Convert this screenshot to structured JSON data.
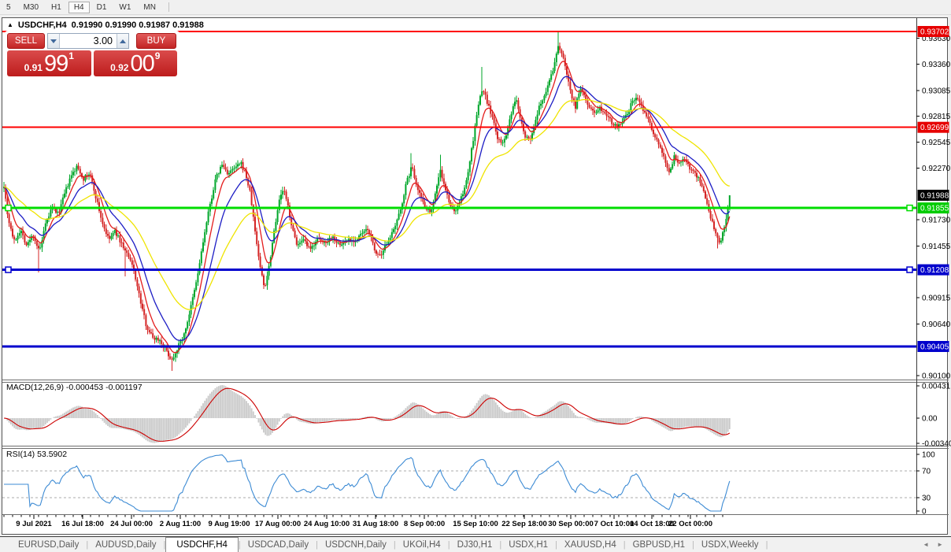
{
  "toolbar": {
    "items": [
      "5",
      "M30",
      "H1",
      "H4",
      "D1",
      "W1",
      "MN"
    ],
    "active": "H4"
  },
  "chart": {
    "symbol_period": "USDCHF,H4",
    "quotes": "0.91990 0.91990 0.91987 0.91988",
    "arrow_icon": "▲"
  },
  "trade_panel": {
    "sell_label": "SELL",
    "buy_label": "BUY",
    "volume": "3.00",
    "sell_price": {
      "small": "0.91",
      "big": "99",
      "sup": "1"
    },
    "buy_price": {
      "small": "0.92",
      "big": "00",
      "sup": "9"
    }
  },
  "indicators": {
    "macd_label": "MACD(12,26,9) -0.000453 -0.001197",
    "rsi_label": "RSI(14) 53.5902"
  },
  "price_axis": {
    "ticks": [
      0.9363,
      0.9336,
      0.93085,
      0.92815,
      0.92545,
      0.9227,
      0.9173,
      0.91455,
      0.90915,
      0.9064,
      0.901
    ],
    "badges": [
      {
        "value": "0.93702",
        "price": 0.93702,
        "bg": "#e60000",
        "fg": "#ffffff"
      },
      {
        "value": "0.92699",
        "price": 0.92699,
        "bg": "#e60000",
        "fg": "#ffffff"
      },
      {
        "value": "0.91988",
        "price": 0.91988,
        "bg": "#000000",
        "fg": "#ffffff"
      },
      {
        "value": "0.91855",
        "price": 0.91855,
        "bg": "#00cc00",
        "fg": "#ffffff"
      },
      {
        "value": "0.91208",
        "price": 0.91208,
        "bg": "#0000cc",
        "fg": "#ffffff"
      },
      {
        "value": "0.90405",
        "price": 0.90405,
        "bg": "#0000cc",
        "fg": "#ffffff"
      }
    ]
  },
  "macd_axis": [
    {
      "label": "0.00431",
      "value": 0.00431
    },
    {
      "label": "0.00",
      "value": 0
    },
    {
      "label": "-0.003405",
      "value": -0.003405
    }
  ],
  "rsi_axis": [
    {
      "label": "100",
      "value": 100
    },
    {
      "label": "70",
      "value": 70
    },
    {
      "label": "30",
      "value": 30
    },
    {
      "label": "0",
      "value": 0
    }
  ],
  "date_axis": [
    {
      "text": "9 Jul 2021",
      "x": 43
    },
    {
      "text": "16 Jul 18:00",
      "x": 105
    },
    {
      "text": "24 Jul 00:00",
      "x": 167
    },
    {
      "text": "2 Aug 11:00",
      "x": 229
    },
    {
      "text": "9 Aug 19:00",
      "x": 291
    },
    {
      "text": "17 Aug 00:00",
      "x": 353
    },
    {
      "text": "24 Aug 10:00",
      "x": 415
    },
    {
      "text": "31 Aug 18:00",
      "x": 477
    },
    {
      "text": "8 Sep 00:00",
      "x": 539
    },
    {
      "text": "15 Sep 10:00",
      "x": 604
    },
    {
      "text": "22 Sep 18:00",
      "x": 666
    },
    {
      "text": "30 Sep 00:00",
      "x": 725
    },
    {
      "text": "7 Oct 10:00",
      "x": 780
    },
    {
      "text": "14 Oct 18:00",
      "x": 828
    },
    {
      "text": "22 Oct 00:00",
      "x": 877
    }
  ],
  "tabs": {
    "items": [
      "EURUSD,Daily",
      "AUDUSD,Daily",
      "USDCHF,H4",
      "USDCAD,Daily",
      "USDCNH,Daily",
      "UKOil,H4",
      "DJ30,H1",
      "USDX,H1",
      "XAUUSD,H4",
      "GBPUSD,H1",
      "USDX,Weekly"
    ],
    "active_index": 2,
    "scroll_left_icon": "◄",
    "scroll_right_icon": "►"
  },
  "chart_data": {
    "type": "candlestick",
    "symbol": "USDCHF",
    "timeframe": "H4",
    "ylim": [
      0.90067,
      0.93801
    ],
    "current_price": 0.91988,
    "colors": {
      "up": "#00a62a",
      "down": "#d42525",
      "ma_fast": "#e41c1c",
      "ma_mid": "#1c1cc4",
      "ma_slow": "#efe400",
      "macd_hist": "#c9c9c9",
      "macd_signal": "#cc0000",
      "rsi_line": "#3d8bd4"
    },
    "moving_averages": [
      {
        "name": "fast",
        "period": 8,
        "color": "#e41c1c"
      },
      {
        "name": "mid",
        "period": 18,
        "color": "#1c1cc4"
      },
      {
        "name": "slow",
        "period": 45,
        "color": "#efe400"
      }
    ],
    "macd_params": {
      "fast": 12,
      "slow": 26,
      "signal": 9,
      "value": -0.000453,
      "signal_value": -0.001197,
      "axis_max": 0.00431,
      "axis_min": -0.003405
    },
    "rsi_params": {
      "period": 14,
      "value": 53.5902,
      "levels": [
        70,
        30
      ]
    },
    "hlines": [
      {
        "price": 0.93702,
        "color": "#ff0000",
        "width": 2,
        "handles": false
      },
      {
        "price": 0.92699,
        "color": "#ff0000",
        "width": 2,
        "handles": false
      },
      {
        "price": 0.91855,
        "color": "#00dd00",
        "width": 3,
        "handles": true
      },
      {
        "price": 0.91208,
        "color": "#0000cd",
        "width": 3,
        "handles": true
      },
      {
        "price": 0.90405,
        "color": "#0000cd",
        "width": 3,
        "handles": false
      }
    ],
    "close_waypoints": [
      [
        5,
        0.921
      ],
      [
        10,
        0.9176
      ],
      [
        18,
        0.915
      ],
      [
        26,
        0.9163
      ],
      [
        34,
        0.9146
      ],
      [
        42,
        0.9158
      ],
      [
        50,
        0.9139
      ],
      [
        58,
        0.9168
      ],
      [
        66,
        0.9186
      ],
      [
        74,
        0.9179
      ],
      [
        82,
        0.92
      ],
      [
        90,
        0.9218
      ],
      [
        98,
        0.9229
      ],
      [
        106,
        0.9216
      ],
      [
        114,
        0.9222
      ],
      [
        122,
        0.9196
      ],
      [
        130,
        0.917
      ],
      [
        138,
        0.9152
      ],
      [
        146,
        0.9161
      ],
      [
        154,
        0.9149
      ],
      [
        162,
        0.9136
      ],
      [
        170,
        0.9121
      ],
      [
        178,
        0.9089
      ],
      [
        186,
        0.9062
      ],
      [
        194,
        0.905
      ],
      [
        202,
        0.9048
      ],
      [
        210,
        0.9038
      ],
      [
        218,
        0.9026
      ],
      [
        226,
        0.904
      ],
      [
        234,
        0.9053
      ],
      [
        242,
        0.908
      ],
      [
        250,
        0.911
      ],
      [
        258,
        0.915
      ],
      [
        266,
        0.9186
      ],
      [
        274,
        0.9216
      ],
      [
        282,
        0.9231
      ],
      [
        290,
        0.9221
      ],
      [
        298,
        0.9227
      ],
      [
        306,
        0.9232
      ],
      [
        312,
        0.9221
      ],
      [
        318,
        0.92
      ],
      [
        324,
        0.9161
      ],
      [
        330,
        0.9126
      ],
      [
        336,
        0.9101
      ],
      [
        342,
        0.9126
      ],
      [
        348,
        0.9161
      ],
      [
        354,
        0.9191
      ],
      [
        360,
        0.9206
      ],
      [
        366,
        0.9186
      ],
      [
        372,
        0.9161
      ],
      [
        378,
        0.9146
      ],
      [
        386,
        0.9151
      ],
      [
        394,
        0.9141
      ],
      [
        402,
        0.9153
      ],
      [
        412,
        0.9149
      ],
      [
        422,
        0.9156
      ],
      [
        432,
        0.9146
      ],
      [
        442,
        0.9153
      ],
      [
        452,
        0.9151
      ],
      [
        460,
        0.9159
      ],
      [
        468,
        0.9163
      ],
      [
        476,
        0.9141
      ],
      [
        484,
        0.9133
      ],
      [
        492,
        0.9151
      ],
      [
        500,
        0.9161
      ],
      [
        508,
        0.9181
      ],
      [
        516,
        0.9211
      ],
      [
        523,
        0.9229
      ],
      [
        529,
        0.9211
      ],
      [
        535,
        0.9196
      ],
      [
        541,
        0.9186
      ],
      [
        547,
        0.9181
      ],
      [
        553,
        0.9201
      ],
      [
        559,
        0.9226
      ],
      [
        565,
        0.9206
      ],
      [
        571,
        0.9191
      ],
      [
        577,
        0.9181
      ],
      [
        583,
        0.9191
      ],
      [
        589,
        0.9201
      ],
      [
        595,
        0.9226
      ],
      [
        601,
        0.9256
      ],
      [
        607,
        0.9291
      ],
      [
        613,
        0.9311
      ],
      [
        619,
        0.9296
      ],
      [
        625,
        0.9281
      ],
      [
        631,
        0.9261
      ],
      [
        637,
        0.9251
      ],
      [
        643,
        0.9263
      ],
      [
        649,
        0.9281
      ],
      [
        655,
        0.9301
      ],
      [
        661,
        0.9281
      ],
      [
        667,
        0.9261
      ],
      [
        673,
        0.9256
      ],
      [
        679,
        0.9271
      ],
      [
        685,
        0.9291
      ],
      [
        691,
        0.9303
      ],
      [
        697,
        0.9316
      ],
      [
        703,
        0.9331
      ],
      [
        709,
        0.9356
      ],
      [
        714,
        0.9346
      ],
      [
        719,
        0.9331
      ],
      [
        725,
        0.9306
      ],
      [
        731,
        0.9291
      ],
      [
        737,
        0.9311
      ],
      [
        743,
        0.9301
      ],
      [
        749,
        0.9291
      ],
      [
        755,
        0.9285
      ],
      [
        761,
        0.9291
      ],
      [
        767,
        0.9287
      ],
      [
        773,
        0.9281
      ],
      [
        779,
        0.9273
      ],
      [
        785,
        0.9271
      ],
      [
        791,
        0.9277
      ],
      [
        797,
        0.9283
      ],
      [
        803,
        0.9297
      ],
      [
        809,
        0.9301
      ],
      [
        815,
        0.9291
      ],
      [
        821,
        0.9283
      ],
      [
        827,
        0.9271
      ],
      [
        833,
        0.9259
      ],
      [
        839,
        0.9249
      ],
      [
        845,
        0.9233
      ],
      [
        851,
        0.9223
      ],
      [
        857,
        0.9241
      ],
      [
        863,
        0.9231
      ],
      [
        869,
        0.9239
      ],
      [
        875,
        0.9229
      ],
      [
        881,
        0.9223
      ],
      [
        887,
        0.9217
      ],
      [
        893,
        0.9206
      ],
      [
        899,
        0.9185
      ],
      [
        905,
        0.9169
      ],
      [
        911,
        0.9153
      ],
      [
        915,
        0.9147
      ],
      [
        920,
        0.9166
      ],
      [
        924,
        0.9181
      ],
      [
        928,
        0.9199
      ]
    ],
    "wick_spikes": [
      {
        "x": 50,
        "low": 0.9118
      },
      {
        "x": 158,
        "low": 0.9114
      },
      {
        "x": 218,
        "low": 0.9015
      },
      {
        "x": 523,
        "high": 0.9243
      },
      {
        "x": 559,
        "high": 0.9241
      },
      {
        "x": 613,
        "high": 0.9333
      },
      {
        "x": 709,
        "high": 0.937
      },
      {
        "x": 911,
        "low": 0.9143
      }
    ]
  }
}
